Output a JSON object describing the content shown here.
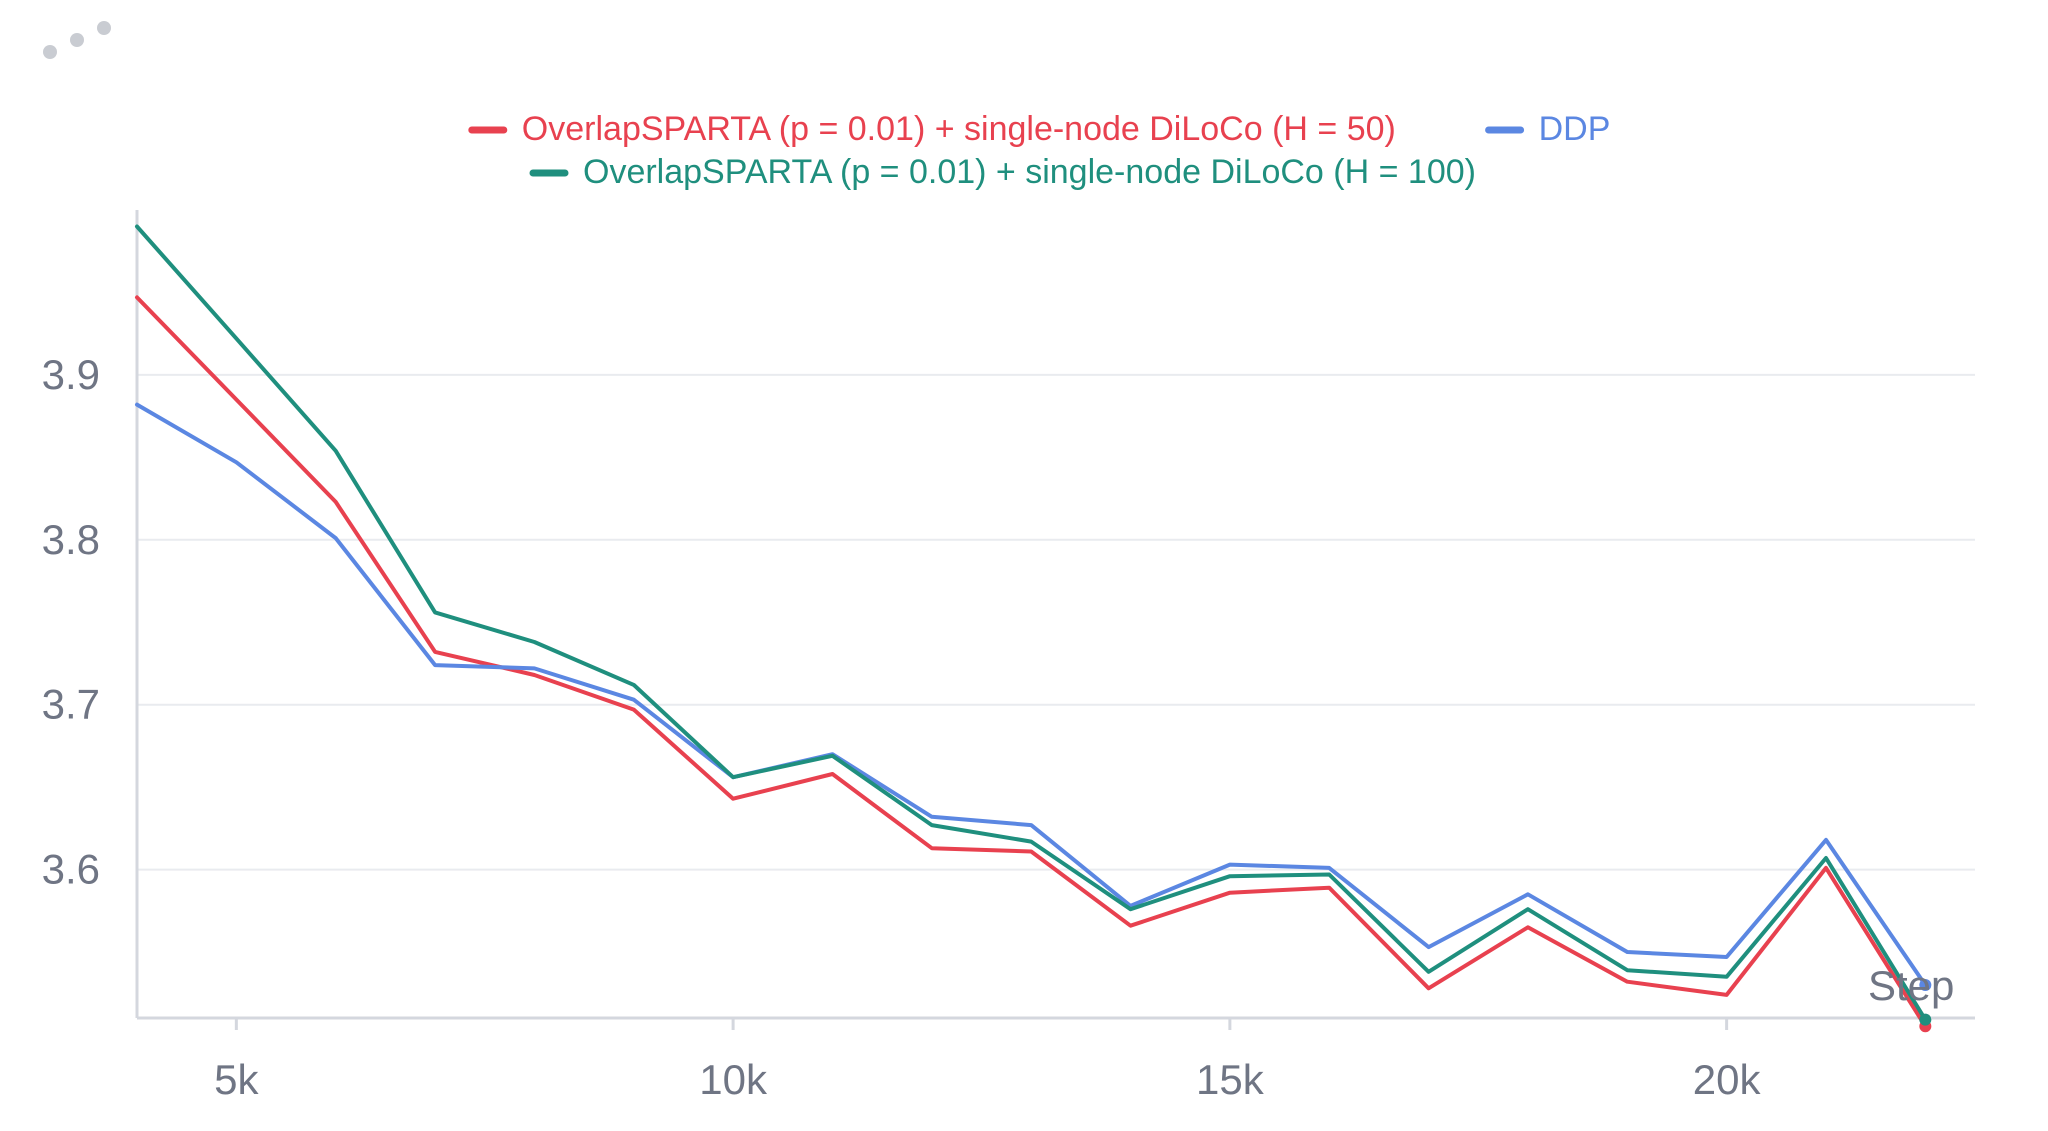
{
  "chart_data": {
    "type": "line",
    "title": "",
    "xlabel": "Step",
    "ylabel": "",
    "xlim": [
      4000,
      22500
    ],
    "ylim": [
      3.51,
      4.0
    ],
    "x_ticks": [
      5000,
      10000,
      15000,
      20000
    ],
    "x_tick_labels": [
      "5k",
      "10k",
      "15k",
      "20k"
    ],
    "y_ticks": [
      3.6,
      3.7,
      3.8,
      3.9
    ],
    "y_tick_labels": [
      "3.6",
      "3.7",
      "3.8",
      "3.9"
    ],
    "grid": true,
    "legend_position": "top-center",
    "x": [
      4000,
      5000,
      6000,
      7000,
      8000,
      9000,
      10000,
      11000,
      12000,
      13000,
      14000,
      15000,
      16000,
      17000,
      18000,
      19000,
      20000,
      21000,
      22000
    ],
    "series": [
      {
        "name": "OverlapSPARTA (p = 0.01) + single-node DiLoCo (H = 50)",
        "color": "#e8414f",
        "values": [
          3.947,
          3.885,
          3.823,
          3.732,
          3.718,
          3.697,
          3.643,
          3.658,
          3.613,
          3.611,
          3.566,
          3.586,
          3.589,
          3.528,
          3.565,
          3.532,
          3.524,
          3.601,
          3.505
        ]
      },
      {
        "name": "DDP",
        "color": "#5b87e2",
        "values": [
          3.882,
          3.847,
          3.801,
          3.724,
          3.722,
          3.703,
          3.656,
          3.67,
          3.632,
          3.627,
          3.578,
          3.603,
          3.601,
          3.553,
          3.585,
          3.55,
          3.547,
          3.618,
          3.53
        ]
      },
      {
        "name": "OverlapSPARTA (p = 0.01) + single-node DiLoCo (H = 100)",
        "color": "#1f8f7e",
        "values": [
          3.99,
          3.922,
          3.854,
          3.756,
          3.738,
          3.712,
          3.656,
          3.669,
          3.627,
          3.617,
          3.576,
          3.596,
          3.597,
          3.538,
          3.576,
          3.539,
          3.535,
          3.607,
          3.509
        ]
      }
    ],
    "legend_rows": [
      [
        0,
        1
      ],
      [
        2
      ]
    ]
  },
  "ui": {
    "menu_icon": "more-horizontal-dots-icon",
    "dots_color": "#c9ccd2",
    "tick_color": "#6f7584"
  }
}
